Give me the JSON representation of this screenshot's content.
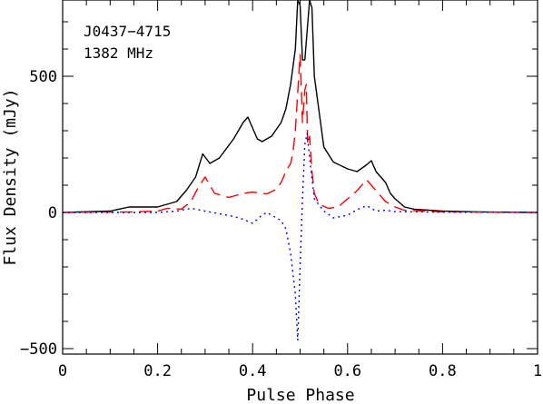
{
  "chart_data": {
    "type": "line",
    "title": "",
    "xlabel": "Pulse Phase",
    "ylabel": "Flux Density (mJy)",
    "xlim": [
      0,
      1
    ],
    "ylim": [
      -520,
      780
    ],
    "x_ticks": [
      0,
      0.2,
      0.4,
      0.6,
      0.8,
      1
    ],
    "x_tick_labels": [
      "0",
      "0.2",
      "0.4",
      "0.6",
      "0.8",
      "1"
    ],
    "y_ticks": [
      -500,
      0,
      500
    ],
    "y_tick_labels": [
      "−500",
      "0",
      "500"
    ],
    "annotations": [
      "J0437−4715",
      "1382 MHz"
    ],
    "grid": false,
    "legend": null,
    "series": [
      {
        "color": "#000000",
        "style": "solid",
        "x": [
          0,
          0.1,
          0.14,
          0.2,
          0.24,
          0.26,
          0.28,
          0.295,
          0.31,
          0.33,
          0.36,
          0.38,
          0.39,
          0.41,
          0.42,
          0.44,
          0.46,
          0.47,
          0.48,
          0.49,
          0.495,
          0.5,
          0.505,
          0.51,
          0.52,
          0.525,
          0.53,
          0.55,
          0.57,
          0.6,
          0.62,
          0.64,
          0.65,
          0.66,
          0.68,
          0.69,
          0.7,
          0.72,
          0.74,
          0.8,
          0.88,
          1
        ],
        "y": [
          0,
          5,
          20,
          20,
          40,
          80,
          130,
          215,
          180,
          200,
          270,
          330,
          350,
          270,
          260,
          280,
          330,
          380,
          470,
          600,
          780,
          760,
          560,
          560,
          780,
          750,
          500,
          240,
          185,
          160,
          150,
          175,
          190,
          150,
          110,
          70,
          50,
          20,
          12,
          5,
          2,
          0
        ]
      },
      {
        "color": "#ff0000",
        "style": "dashed",
        "x": [
          0,
          0.15,
          0.2,
          0.22,
          0.25,
          0.27,
          0.285,
          0.3,
          0.32,
          0.35,
          0.38,
          0.4,
          0.43,
          0.45,
          0.46,
          0.47,
          0.48,
          0.485,
          0.49,
          0.495,
          0.5,
          0.505,
          0.51,
          0.513,
          0.516,
          0.52,
          0.525,
          0.53,
          0.54,
          0.56,
          0.58,
          0.6,
          0.62,
          0.64,
          0.66,
          0.68,
          0.7,
          0.72,
          0.8,
          0.9,
          1
        ],
        "y": [
          0,
          2,
          5,
          15,
          12,
          40,
          90,
          130,
          70,
          55,
          70,
          75,
          68,
          85,
          110,
          150,
          180,
          220,
          300,
          440,
          580,
          330,
          450,
          470,
          250,
          280,
          150,
          70,
          30,
          15,
          20,
          50,
          80,
          120,
          80,
          40,
          20,
          8,
          2,
          1,
          0
        ]
      },
      {
        "color": "#0000ff",
        "style": "dotted",
        "x": [
          0,
          0.2,
          0.24,
          0.27,
          0.3,
          0.33,
          0.36,
          0.38,
          0.4,
          0.42,
          0.43,
          0.44,
          0.46,
          0.47,
          0.48,
          0.49,
          0.495,
          0.5,
          0.505,
          0.51,
          0.515,
          0.52,
          0.53,
          0.55,
          0.57,
          0.6,
          0.62,
          0.64,
          0.66,
          0.68,
          0.7,
          0.8,
          1
        ],
        "y": [
          0,
          0,
          5,
          15,
          5,
          -5,
          -15,
          -25,
          -40,
          -10,
          0,
          -10,
          -30,
          -60,
          -150,
          -300,
          -470,
          -200,
          50,
          250,
          290,
          200,
          50,
          5,
          -20,
          -10,
          10,
          25,
          5,
          8,
          3,
          1,
          0
        ]
      }
    ]
  }
}
